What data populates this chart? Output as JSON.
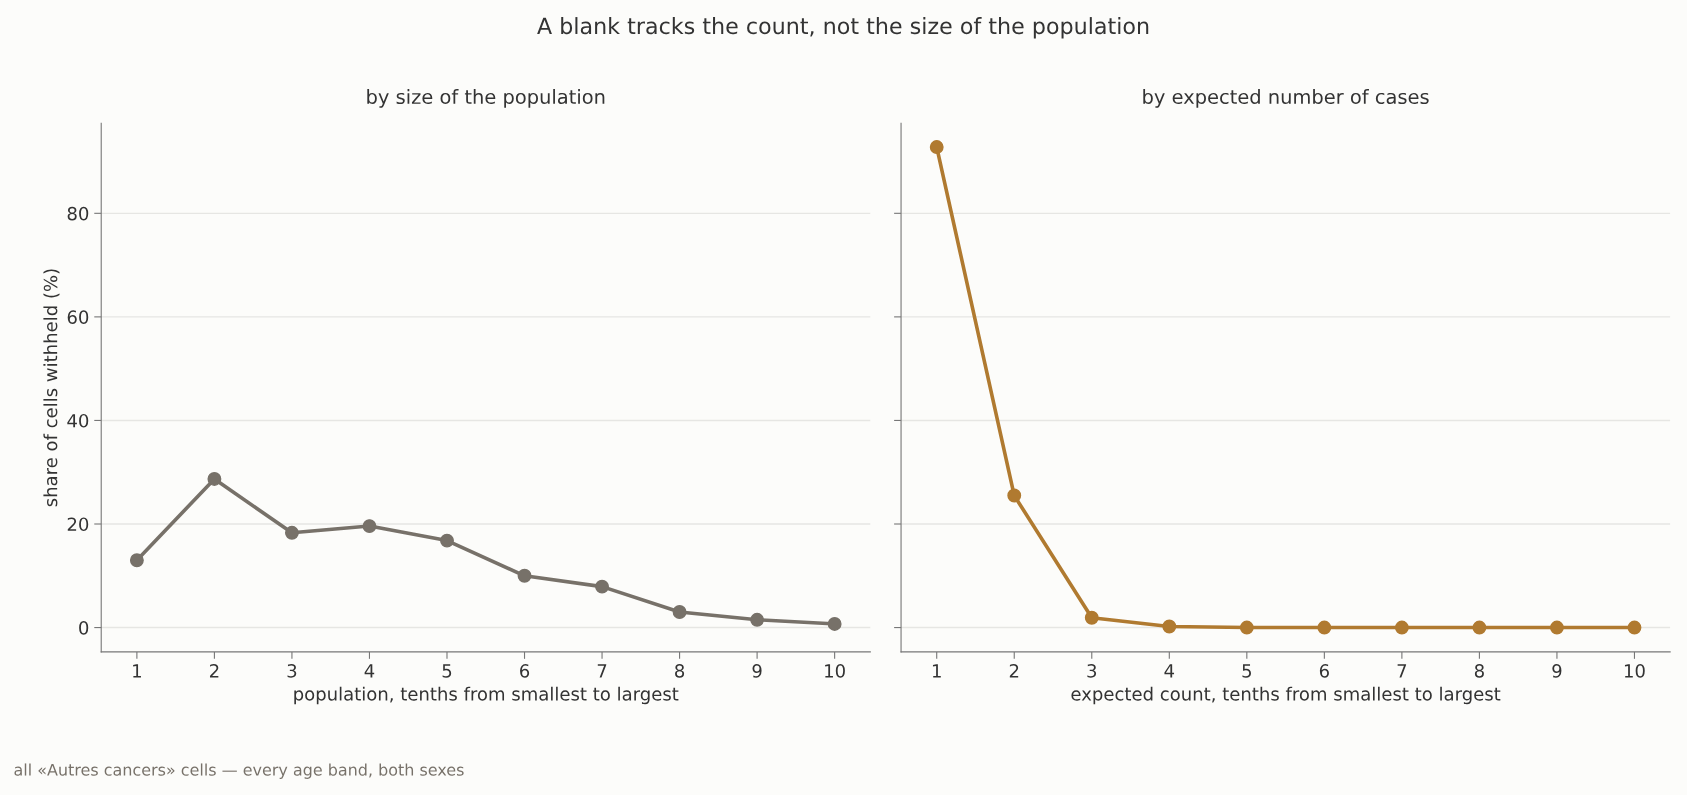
{
  "chart_data": [
    {
      "type": "line",
      "title": "by size of the population",
      "xlabel": "population, tenths from smallest to largest",
      "ylabel": "share of cells withheld (%)",
      "annotations": [
        "A blank tracks the count, not the size of the population",
        "all «Autres cancers» cells — every age band, both sexes"
      ],
      "x": [
        1,
        2,
        3,
        4,
        5,
        6,
        7,
        8,
        9,
        10
      ],
      "series": [
        {
          "color": "#777169",
          "values": [
            13.0,
            28.7,
            18.3,
            19.6,
            16.8,
            10.0,
            7.9,
            3.0,
            1.5,
            0.7
          ]
        }
      ],
      "xlim": [
        0.54,
        10.46
      ],
      "xticks": [
        1,
        2,
        3,
        4,
        5,
        6,
        7,
        8,
        9,
        10
      ],
      "ylim": [
        -4.7,
        97.4
      ],
      "yticks": [
        0,
        20,
        40,
        60,
        80
      ],
      "grid": "y",
      "marker": "circle",
      "line_style": "solid",
      "legend": false
    },
    {
      "type": "line",
      "title": "by expected number of cases",
      "xlabel": "expected count, tenths from smallest to largest",
      "x": [
        1,
        2,
        3,
        4,
        5,
        6,
        7,
        8,
        9,
        10
      ],
      "series": [
        {
          "color": "#b07a30",
          "values": [
            92.8,
            25.5,
            1.9,
            0.2,
            0,
            0,
            0,
            0,
            0,
            0
          ]
        }
      ],
      "xlim": [
        0.54,
        10.46
      ],
      "xticks": [
        1,
        2,
        3,
        4,
        5,
        6,
        7,
        8,
        9,
        10
      ],
      "ylim": [
        -4.7,
        97.4
      ],
      "yticks": [
        0,
        20,
        40,
        60,
        80
      ],
      "grid": "y",
      "marker": "circle",
      "line_style": "solid",
      "legend": false,
      "tick_labels": "x"
    }
  ]
}
